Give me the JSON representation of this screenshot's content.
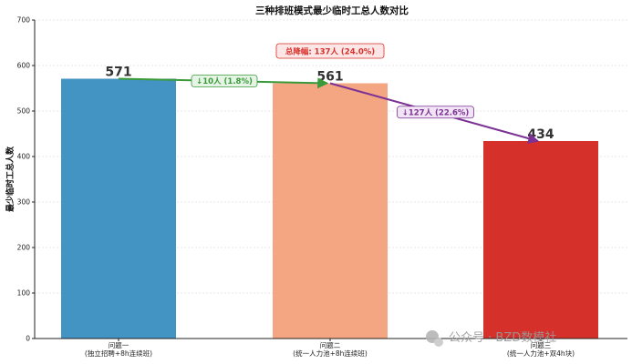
{
  "chart_data": {
    "type": "bar",
    "title": "三种排班模式最少临时工总人数对比",
    "ylabel": "最少临时工总人数",
    "xlabel": "",
    "ylim": [
      0,
      700
    ],
    "yticks": [
      0,
      100,
      200,
      300,
      400,
      500,
      600,
      700
    ],
    "grid": true,
    "categories": [
      {
        "line1": "问题一",
        "line2": "(独立招聘+8h连续班)"
      },
      {
        "line1": "问题二",
        "line2": "(统一人力池+8h连续班)"
      },
      {
        "line1": "问题三",
        "line2": "(统一人力池+双4h块)"
      }
    ],
    "values": [
      571,
      561,
      434
    ],
    "value_labels": [
      "571",
      "561",
      "434"
    ],
    "colors": [
      "#4393c3",
      "#f4a582",
      "#d6302a"
    ],
    "annotations": [
      {
        "from": 0,
        "to": 1,
        "text": "↓10人 (1.8%)",
        "color": "#3a9a3a",
        "fill": "#e6f4e6"
      },
      {
        "from": 1,
        "to": 2,
        "text": "↓127人 (22.6%)",
        "color": "#7b3294",
        "fill": "#f1e4f5"
      }
    ],
    "total": {
      "text": "总降幅: 137人 (24.0%)",
      "color": "#d6302a",
      "fill": "#fde6e6"
    }
  },
  "watermark": "公众号 · BZD数模社"
}
